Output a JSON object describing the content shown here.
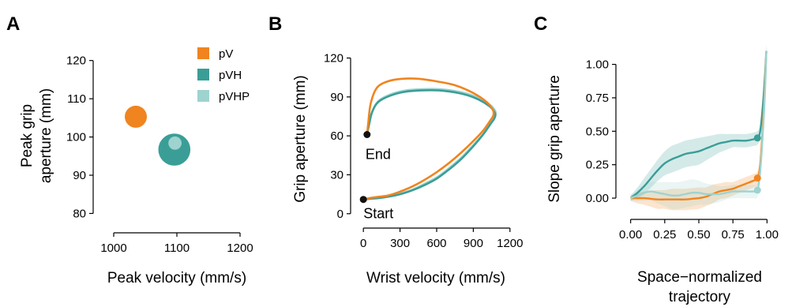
{
  "colors": {
    "pV": "#f0841f",
    "pVH": "#3a9e97",
    "pVHP": "#9ed3cf"
  },
  "chart_data": [
    {
      "panel": "A",
      "type": "scatter",
      "xlabel": "Peak velocity (mm/s)",
      "ylabel_lines": [
        "Peak grip",
        "aperture (mm)"
      ],
      "xlim": [
        980,
        1220
      ],
      "ylim": [
        77,
        122
      ],
      "xticks": [
        1000,
        1100,
        1200
      ],
      "yticks": [
        80,
        90,
        100,
        110,
        120
      ],
      "series": [
        {
          "name": "pV",
          "color": "#f0841f",
          "x": 1035,
          "y": 105.3,
          "size": 1.0
        },
        {
          "name": "pVH",
          "color": "#3a9e97",
          "x": 1096,
          "y": 96.7,
          "size": 1.45
        },
        {
          "name": "pVHP",
          "color": "#9ed3cf",
          "x": 1097,
          "y": 98.4,
          "size": 0.6
        }
      ],
      "legend": [
        "pV",
        "pVH",
        "pVHP"
      ],
      "legend_position": "top-right"
    },
    {
      "panel": "B",
      "type": "line",
      "xlabel": "Wrist velocity (mm/s)",
      "ylabel": "Grip aperture (mm)",
      "xlim": [
        -40,
        1240
      ],
      "ylim": [
        -5,
        127
      ],
      "xticks": [
        0,
        300,
        600,
        900,
        1200
      ],
      "yticks": [
        0,
        30,
        60,
        90,
        120
      ],
      "annotations": {
        "start": "Start",
        "end": "End"
      },
      "start_point": [
        0,
        11
      ],
      "end_point": [
        30,
        61
      ],
      "series": [
        {
          "name": "pV",
          "color": "#f0841f",
          "x": [
            0,
            50,
            120,
            200,
            300,
            400,
            500,
            600,
            700,
            800,
            900,
            980,
            1040,
            1065,
            1060,
            1010,
            900,
            750,
            600,
            450,
            320,
            200,
            110,
            60,
            40,
            30
          ],
          "y": [
            11,
            12,
            13,
            14,
            17,
            21,
            26,
            32,
            39,
            47,
            56,
            64,
            72,
            76,
            80,
            86,
            93,
            99,
            102,
            104,
            104,
            102,
            97,
            85,
            70,
            61
          ]
        },
        {
          "name": "pVH",
          "color": "#3a9e97",
          "x": [
            0,
            50,
            120,
            200,
            300,
            400,
            500,
            600,
            700,
            800,
            900,
            980,
            1040,
            1075,
            1075,
            1030,
            920,
            780,
            620,
            470,
            340,
            220,
            120,
            70,
            45,
            30
          ],
          "y": [
            11,
            11.5,
            12,
            13,
            15,
            18,
            22,
            27,
            34,
            42,
            52,
            61,
            69,
            74,
            78,
            83,
            89,
            93,
            95,
            95,
            94,
            91,
            86,
            78,
            68,
            61
          ]
        },
        {
          "name": "pVHP",
          "color": "#9ed3cf",
          "x": [
            0,
            50,
            120,
            200,
            300,
            400,
            500,
            600,
            700,
            800,
            900,
            985,
            1045,
            1080,
            1080,
            1035,
            925,
            785,
            625,
            475,
            345,
            225,
            125,
            75,
            48,
            30
          ],
          "y": [
            11,
            12,
            12.5,
            13.5,
            15.5,
            18.5,
            23,
            28,
            35,
            43,
            53,
            62,
            70,
            75,
            79,
            84,
            90,
            94,
            96,
            96,
            95,
            92,
            87,
            79,
            69,
            61
          ]
        }
      ]
    },
    {
      "panel": "C",
      "type": "line",
      "xlabel_lines": [
        "Space−normalized",
        "trajectory"
      ],
      "ylabel": "Slope grip aperture",
      "xlim": [
        -0.05,
        1.05
      ],
      "ylim": [
        -0.1,
        1.08
      ],
      "xticks": [
        "0.00",
        "0.25",
        "0.50",
        "0.75",
        "1.00"
      ],
      "yticks": [
        "0.00",
        "0.25",
        "0.50",
        "0.75",
        "1.00"
      ],
      "series": [
        {
          "name": "pVH",
          "color": "#3a9e97",
          "x": [
            0,
            0.05,
            0.1,
            0.15,
            0.2,
            0.25,
            0.3,
            0.35,
            0.4,
            0.45,
            0.5,
            0.55,
            0.6,
            0.65,
            0.7,
            0.75,
            0.8,
            0.85,
            0.9,
            0.93,
            0.95,
            0.97,
            0.985,
            0.995
          ],
          "y": [
            0,
            0.04,
            0.09,
            0.15,
            0.21,
            0.26,
            0.29,
            0.31,
            0.33,
            0.34,
            0.35,
            0.37,
            0.39,
            0.41,
            0.42,
            0.43,
            0.43,
            0.43,
            0.44,
            0.45,
            0.5,
            0.7,
            0.92,
            1.1
          ],
          "band": [
            0.02,
            0.04,
            0.06,
            0.07,
            0.08,
            0.09,
            0.1,
            0.1,
            0.1,
            0.1,
            0.1,
            0.09,
            0.08,
            0.07,
            0.06,
            0.05,
            0.05,
            0.05,
            0.05,
            0.05,
            0.05,
            0.05,
            0.05,
            0.05
          ],
          "marker_x": 0.93,
          "marker_y": 0.45
        },
        {
          "name": "pV",
          "color": "#f0841f",
          "x": [
            0,
            0.05,
            0.1,
            0.15,
            0.2,
            0.25,
            0.3,
            0.35,
            0.4,
            0.45,
            0.5,
            0.55,
            0.6,
            0.65,
            0.7,
            0.75,
            0.8,
            0.85,
            0.9,
            0.93,
            0.95,
            0.97,
            0.985,
            0.995
          ],
          "y": [
            0,
            0.0,
            0.0,
            -0.005,
            -0.01,
            -0.01,
            -0.01,
            -0.01,
            -0.01,
            -0.005,
            0.0,
            0.01,
            0.03,
            0.05,
            0.06,
            0.07,
            0.09,
            0.11,
            0.13,
            0.15,
            0.25,
            0.55,
            0.85,
            1.1
          ],
          "band": [
            0.02,
            0.04,
            0.05,
            0.06,
            0.07,
            0.07,
            0.08,
            0.08,
            0.08,
            0.08,
            0.08,
            0.07,
            0.07,
            0.06,
            0.06,
            0.05,
            0.05,
            0.05,
            0.05,
            0.05,
            0.05,
            0.05,
            0.05,
            0.05
          ],
          "marker_x": 0.93,
          "marker_y": 0.15
        },
        {
          "name": "pVHP",
          "color": "#9ed3cf",
          "x": [
            0,
            0.05,
            0.1,
            0.15,
            0.2,
            0.25,
            0.3,
            0.35,
            0.4,
            0.45,
            0.5,
            0.55,
            0.6,
            0.65,
            0.7,
            0.75,
            0.8,
            0.85,
            0.9,
            0.93,
            0.95,
            0.97,
            0.985,
            0.995
          ],
          "y": [
            0,
            0.02,
            0.04,
            0.05,
            0.04,
            0.03,
            0.02,
            0.02,
            0.03,
            0.04,
            0.04,
            0.03,
            0.03,
            0.03,
            0.04,
            0.05,
            0.05,
            0.05,
            0.05,
            0.06,
            0.2,
            0.5,
            0.8,
            1.1
          ],
          "band": [
            0.02,
            0.04,
            0.06,
            0.07,
            0.08,
            0.09,
            0.1,
            0.1,
            0.1,
            0.1,
            0.09,
            0.08,
            0.07,
            0.06,
            0.05,
            0.05,
            0.05,
            0.05,
            0.05,
            0.05,
            0.05,
            0.05,
            0.05,
            0.05
          ],
          "marker_x": 0.93,
          "marker_y": 0.06
        }
      ]
    }
  ]
}
